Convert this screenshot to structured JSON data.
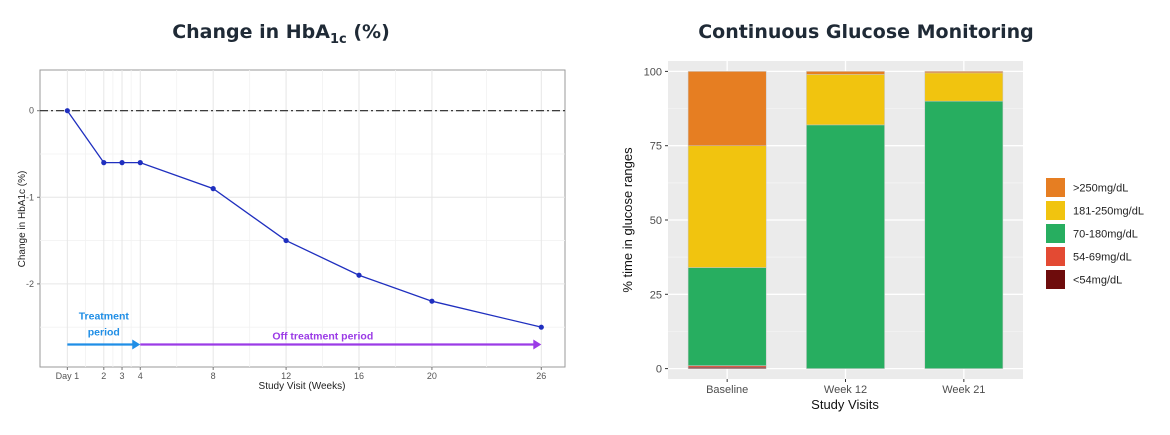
{
  "chart_data": [
    {
      "type": "line",
      "title": "Change in HbA",
      "title_sub": "1c",
      "title_suffix": " (%)",
      "xlabel": "Study Visit (Weeks)",
      "ylabel": "Change in HbA1c (%)",
      "x": [
        0,
        2,
        3,
        4,
        8,
        12,
        16,
        20,
        26
      ],
      "y": [
        0,
        -0.6,
        -0.6,
        -0.6,
        -0.9,
        -1.5,
        -1.9,
        -2.2,
        -2.5
      ],
      "xticks": [
        {
          "value": 0,
          "label": "Day 1"
        },
        {
          "value": 2,
          "label": "2"
        },
        {
          "value": 3,
          "label": "3"
        },
        {
          "value": 4,
          "label": "4"
        },
        {
          "value": 8,
          "label": "8"
        },
        {
          "value": 12,
          "label": "12"
        },
        {
          "value": 16,
          "label": "16"
        },
        {
          "value": 20,
          "label": "20"
        },
        {
          "value": 26,
          "label": "26"
        }
      ],
      "yticks": [
        {
          "value": 0,
          "label": "0"
        },
        {
          "value": -1,
          "label": "-1"
        },
        {
          "value": -2,
          "label": "-2"
        }
      ],
      "xlim": [
        -1.5,
        27.3
      ],
      "ylim": [
        -2.96,
        0.47
      ],
      "reference_line": 0,
      "line_color": "#1f2fbf",
      "annotations": [
        {
          "label_line1": "Treatment",
          "label_line2": "period",
          "x_start": 0,
          "x_end": 4,
          "y": -2.7,
          "color": "#1f8ee6"
        },
        {
          "label": "Off treatment period",
          "x_start": 4,
          "x_end": 26,
          "y": -2.7,
          "color": "#9b3be6"
        }
      ]
    },
    {
      "type": "bar",
      "stacked": true,
      "title": "Continuous Glucose Monitoring",
      "xlabel": "Study Visits",
      "ylabel": "% time in glucose ranges",
      "categories": [
        "Baseline",
        "Week 12",
        "Week 21"
      ],
      "ylim": [
        -3.5,
        103.5
      ],
      "yticks": [
        0,
        25,
        50,
        75,
        100
      ],
      "series": [
        {
          "name": "<54mg/dL",
          "color": "#6e0c0c",
          "values": [
            0.5,
            0,
            0
          ]
        },
        {
          "name": "54-69mg/dL",
          "color": "#e34a33",
          "values": [
            0.5,
            0,
            0
          ]
        },
        {
          "name": "70-180mg/dL",
          "color": "#27ae60",
          "values": [
            33,
            82,
            90
          ]
        },
        {
          "name": "181-250mg/dL",
          "color": "#f1c40f",
          "values": [
            41,
            17,
            9.5
          ]
        },
        {
          "name": ">250mg/dL",
          "color": "#e67e22",
          "values": [
            25,
            1,
            0.5
          ]
        }
      ]
    }
  ]
}
